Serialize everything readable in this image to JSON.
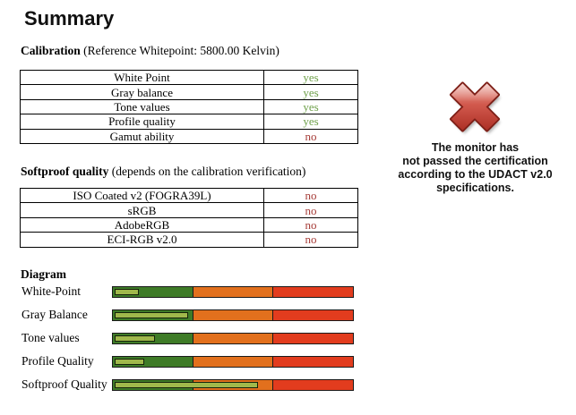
{
  "page": {
    "title": "Summary"
  },
  "calibration": {
    "heading_bold": "Calibration",
    "heading_rest": " (Reference Whitepoint: 5800.00 Kelvin)",
    "rows": [
      {
        "label": "White Point",
        "value": "yes",
        "pass": true
      },
      {
        "label": "Gray balance",
        "value": "yes",
        "pass": true
      },
      {
        "label": "Tone values",
        "value": "yes",
        "pass": true
      },
      {
        "label": "Profile quality",
        "value": "yes",
        "pass": true
      },
      {
        "label": "Gamut ability",
        "value": "no",
        "pass": false
      }
    ]
  },
  "softproof": {
    "heading_bold": "Softproof quality",
    "heading_rest": " (depends on the calibration verification)",
    "rows": [
      {
        "label": "ISO Coated v2 (FOGRA39L)",
        "value": "no",
        "pass": false
      },
      {
        "label": "sRGB",
        "value": "no",
        "pass": false
      },
      {
        "label": "AdobeRGB",
        "value": "no",
        "pass": false
      },
      {
        "label": "ECI-RGB v2.0",
        "value": "no",
        "pass": false
      }
    ]
  },
  "certification": {
    "icon": "fail-cross-icon",
    "lines": [
      "The monitor has",
      "not passed the certification",
      "according to the UDACT v2.0",
      "specifications."
    ]
  },
  "diagram": {
    "heading": "Diagram",
    "zones_pct": [
      33.3,
      33.3,
      33.4
    ],
    "rows": [
      {
        "label": "White-Point",
        "value_pct": 9.5
      },
      {
        "label": "Gray Balance",
        "value_pct": 30
      },
      {
        "label": "Tone values",
        "value_pct": 16
      },
      {
        "label": "Profile Quality",
        "value_pct": 11.5
      },
      {
        "label": "Softproof Quality",
        "value_pct": 59
      }
    ]
  },
  "colors": {
    "pass": "#6FA14B",
    "fail": "#A63C38",
    "zones": [
      "#3E7B27",
      "#E2701D",
      "#E23C1E"
    ],
    "indicator": "#A0B84B",
    "cross_light": "#F2B9B0",
    "cross_mid": "#D25A4E",
    "cross_dark": "#A82A20",
    "cross_outline": "#7E2018"
  },
  "chart_data": {
    "type": "bar",
    "title": "Diagram",
    "orientation": "horizontal",
    "categories": [
      "White-Point",
      "Gray Balance",
      "Tone values",
      "Profile Quality",
      "Softproof Quality"
    ],
    "values": [
      9.5,
      30,
      16,
      11.5,
      59
    ],
    "xlabel": "",
    "ylabel": "",
    "xlim": [
      0,
      100
    ],
    "legend": false,
    "grid": false,
    "zones": [
      {
        "color": "green",
        "range": [
          0,
          33.3
        ]
      },
      {
        "color": "orange",
        "range": [
          33.3,
          66.6
        ]
      },
      {
        "color": "red",
        "range": [
          66.6,
          100
        ]
      }
    ]
  }
}
